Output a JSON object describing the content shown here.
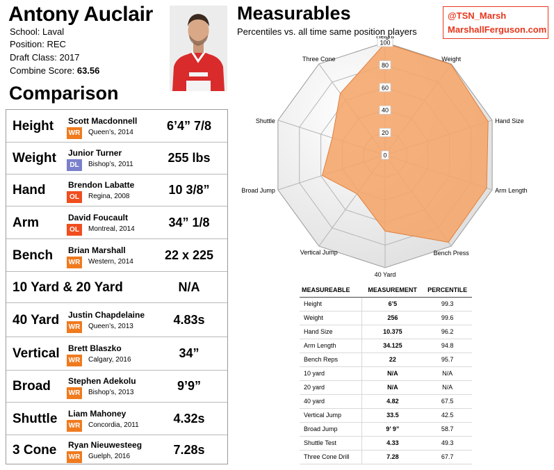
{
  "player": {
    "name": "Antony Auclair",
    "school_label": "School:",
    "school": "Laval",
    "position_label": "Position:",
    "position": "REC",
    "draft_label": "Draft Class:",
    "draft_class": "2017",
    "score_label": "Combine Score:",
    "combine_score": "63.56"
  },
  "comparison": {
    "title": "Comparison",
    "rows": [
      {
        "label": "Height",
        "player": "Scott Macdonnell",
        "pos": "WR",
        "school": "Queen’s, 2014",
        "value": "6’4” 7/8",
        "color": "#f07a1e"
      },
      {
        "label": "Weight",
        "player": "Junior Turner",
        "pos": "DL",
        "school": "Bishop’s, 2011",
        "value": "255 lbs",
        "color": "#7b80cc"
      },
      {
        "label": "Hand",
        "player": "Brendon Labatte",
        "pos": "OL",
        "school": "Regina, 2008",
        "value": "10 3/8”",
        "color": "#f04e1e"
      },
      {
        "label": "Arm",
        "player": "David Foucault",
        "pos": "OL",
        "school": "Montreal, 2014",
        "value": "34” 1/8",
        "color": "#f04e1e"
      },
      {
        "label": "Bench",
        "player": "Brian Marshall",
        "pos": "WR",
        "school": "Western, 2014",
        "value": "22 x 225",
        "color": "#f07a1e"
      },
      {
        "label": "10 Yard & 20 Yard",
        "player": "",
        "pos": "",
        "school": "",
        "value": "N/A",
        "color": ""
      },
      {
        "label": "40 Yard",
        "player": "Justin Chapdelaine",
        "pos": "WR",
        "school": "Queen’s, 2013",
        "value": "4.83s",
        "color": "#f07a1e"
      },
      {
        "label": "Vertical",
        "player": "Brett Blaszko",
        "pos": "WR",
        "school": "Calgary, 2016",
        "value": "34”",
        "color": "#f07a1e"
      },
      {
        "label": "Broad",
        "player": "Stephen Adekolu",
        "pos": "WR",
        "school": "Bishop’s, 2013",
        "value": "9’9”",
        "color": "#f07a1e"
      },
      {
        "label": "Shuttle",
        "player": "Liam Mahoney",
        "pos": "WR",
        "school": "Concordia, 2011",
        "value": "4.32s",
        "color": "#f07a1e"
      },
      {
        "label": "3 Cone",
        "player": "Ryan Nieuwesteeg",
        "pos": "WR",
        "school": "Guelph, 2016",
        "value": "7.28s",
        "color": "#f07a1e"
      }
    ]
  },
  "social": {
    "handle": "@TSN_Marsh",
    "site": "MarshallFerguson.com",
    "color": "#e8361c"
  },
  "chart_data": {
    "type": "radar",
    "title": "Measurables",
    "subtitle": "Percentiles vs. all time same position players",
    "categories": [
      "Height",
      "Weight",
      "Hand Size",
      "Arm Length",
      "Bench Press",
      "40 Yard",
      "Vertical Jump",
      "Broad Jump",
      "Shuttle",
      "Three Cone"
    ],
    "values": [
      99.3,
      99.6,
      96.2,
      94.8,
      95.7,
      67.5,
      42.5,
      58.7,
      49.3,
      67.7
    ],
    "rlim": [
      0,
      100
    ],
    "ticks": [
      0,
      20,
      40,
      60,
      80,
      100
    ],
    "fill_color": "#f5a56a",
    "stroke_color": "#e0813c",
    "grid": true
  },
  "percentile_table": {
    "headers": [
      "MEASUREABLE",
      "MEASUREMENT",
      "PERCENTILE"
    ],
    "rows": [
      [
        "Height",
        "6’5",
        "99.3"
      ],
      [
        "Weight",
        "256",
        "99.6"
      ],
      [
        "Hand Size",
        "10.375",
        "96.2"
      ],
      [
        "Arm Length",
        "34.125",
        "94.8"
      ],
      [
        "Bench Reps",
        "22",
        "95.7"
      ],
      [
        "10 yard",
        "N/A",
        "N/A"
      ],
      [
        "20 yard",
        "N/A",
        "N/A"
      ],
      [
        "40 yard",
        "4.82",
        "67.5"
      ],
      [
        "Vertical Jump",
        "33.5",
        "42.5"
      ],
      [
        "Broad Jump",
        "9’ 9”",
        "58.7"
      ],
      [
        "Shuttle Test",
        "4.33",
        "49.3"
      ],
      [
        "Three Cone Drill",
        "7.28",
        "67.7"
      ]
    ]
  }
}
